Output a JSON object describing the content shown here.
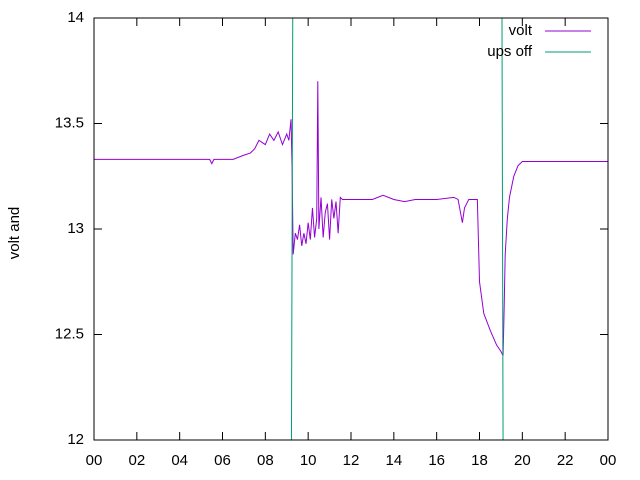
{
  "chart_data": {
    "type": "line",
    "ylabel": "volt and",
    "xlim": [
      0,
      24
    ],
    "ylim": [
      12,
      14
    ],
    "xticks": [
      {
        "value": 0,
        "label": "00"
      },
      {
        "value": 2,
        "label": "02"
      },
      {
        "value": 4,
        "label": "04"
      },
      {
        "value": 6,
        "label": "06"
      },
      {
        "value": 8,
        "label": "08"
      },
      10,
      12,
      14,
      16,
      18,
      20,
      22,
      {
        "value": 24,
        "label": "00"
      }
    ],
    "yticks": [
      12,
      12.5,
      13,
      13.5,
      14
    ],
    "legend": "top-right",
    "series": [
      {
        "name": "volt",
        "color": "#9400d3",
        "x": [
          0,
          2,
          4,
          5.4,
          5.5,
          5.6,
          6,
          6.5,
          7,
          7.3,
          7.5,
          7.7,
          8,
          8.2,
          8.4,
          8.6,
          8.8,
          9,
          9.1,
          9.2,
          9.25,
          9.3,
          9.4,
          9.5,
          9.6,
          9.7,
          9.8,
          9.9,
          10,
          10.1,
          10.2,
          10.3,
          10.4,
          10.45,
          10.5,
          10.6,
          10.7,
          10.8,
          10.9,
          11,
          11.1,
          11.2,
          11.3,
          11.4,
          11.5,
          11.6,
          11.8,
          12,
          13,
          13.5,
          14,
          14.5,
          15,
          16,
          16.8,
          17,
          17.2,
          17.3,
          17.5,
          17.9,
          18,
          18.2,
          18.5,
          18.8,
          19,
          19.1,
          19.15,
          19.2,
          19.3,
          19.4,
          19.6,
          19.8,
          20,
          21,
          22,
          23,
          24
        ],
        "values": [
          13.33,
          13.33,
          13.33,
          13.33,
          13.31,
          13.33,
          13.33,
          13.33,
          13.35,
          13.36,
          13.38,
          13.42,
          13.4,
          13.45,
          13.42,
          13.46,
          13.4,
          13.45,
          13.42,
          13.52,
          13.28,
          12.88,
          12.98,
          12.95,
          13.02,
          12.92,
          12.98,
          12.93,
          13.03,
          12.95,
          13.1,
          12.96,
          13.05,
          13.7,
          13.0,
          13.15,
          12.96,
          13.08,
          13.12,
          12.95,
          13.14,
          13.05,
          13.13,
          12.98,
          13.15,
          13.14,
          13.14,
          13.14,
          13.14,
          13.16,
          13.14,
          13.13,
          13.14,
          13.14,
          13.15,
          13.14,
          13.03,
          13.1,
          13.14,
          13.14,
          12.75,
          12.6,
          12.52,
          12.45,
          12.42,
          12.4,
          12.62,
          12.88,
          13.05,
          13.15,
          13.25,
          13.3,
          13.32,
          13.32,
          13.32,
          13.32,
          13.32
        ]
      },
      {
        "name": "ups off",
        "color": "#009e73",
        "x": [
          9.22,
          9.28,
          19.05,
          19.1
        ],
        "values": [
          12,
          14,
          14,
          12
        ]
      }
    ]
  }
}
